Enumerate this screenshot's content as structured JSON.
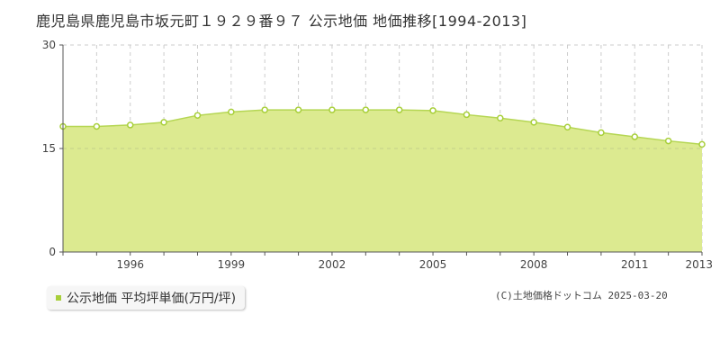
{
  "title": "鹿児島県鹿児島市坂元町１９２９番９７ 公示地価 地価推移[1994-2013]",
  "legend": {
    "label": "公示地価 平均坪単価(万円/坪)"
  },
  "copyright": "(C)土地価格ドットコム 2025-03-20",
  "colors": {
    "area_fill": "#dcea90",
    "line": "#b5d653",
    "marker": "#a8cf3a",
    "grid": "#cccccc",
    "axis": "#555555"
  },
  "chart_data": {
    "type": "area",
    "title": "鹿児島県鹿児島市坂元町１９２９番９７ 公示地価 地価推移[1994-2013]",
    "xlabel": "",
    "ylabel": "",
    "ylim": [
      0,
      30
    ],
    "yticks": [
      0,
      15,
      30
    ],
    "xlim": [
      1994,
      2013
    ],
    "xticks": [
      1996,
      1999,
      2002,
      2005,
      2008,
      2011,
      2013
    ],
    "grid": true,
    "series": [
      {
        "name": "公示地価 平均坪単価(万円/坪)",
        "x": [
          1994,
          1995,
          1996,
          1997,
          1998,
          1999,
          2000,
          2001,
          2002,
          2003,
          2004,
          2005,
          2006,
          2007,
          2008,
          2009,
          2010,
          2011,
          2012,
          2013
        ],
        "values": [
          18.2,
          18.2,
          18.4,
          18.8,
          19.8,
          20.3,
          20.6,
          20.6,
          20.6,
          20.6,
          20.6,
          20.5,
          19.9,
          19.4,
          18.8,
          18.1,
          17.3,
          16.7,
          16.1,
          15.6
        ]
      }
    ]
  }
}
